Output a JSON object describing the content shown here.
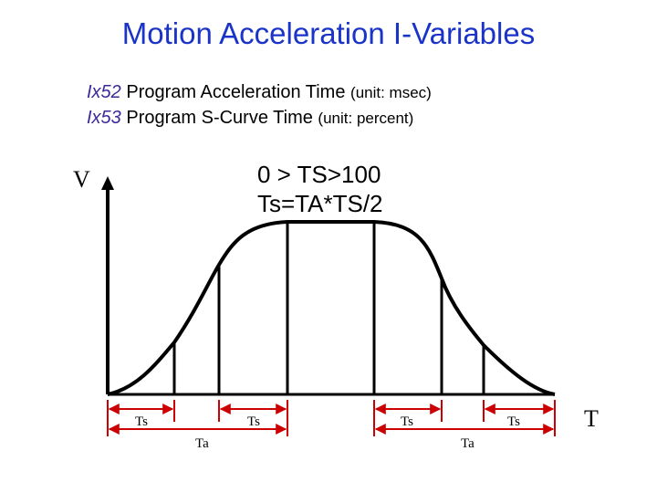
{
  "title": "Motion Acceleration I-Variables",
  "desc": [
    {
      "var": "Ix52",
      "text": " Program Acceleration Time ",
      "unit": "(unit: msec)"
    },
    {
      "var": "Ix53",
      "text": " Program S-Curve Time ",
      "unit": "(unit: percent)"
    }
  ],
  "formula": {
    "line1": "0 > TS>100",
    "line2": "Ts=TA*TS/2"
  },
  "axes": {
    "y_label": "V",
    "x_label": "T"
  },
  "labels": {
    "ts": "Ts",
    "ta": "Ta"
  },
  "colors": {
    "title": "#1a33c8",
    "dimension": "#cc0000",
    "curve": "#000000",
    "variable": "#3a2a9a"
  }
}
